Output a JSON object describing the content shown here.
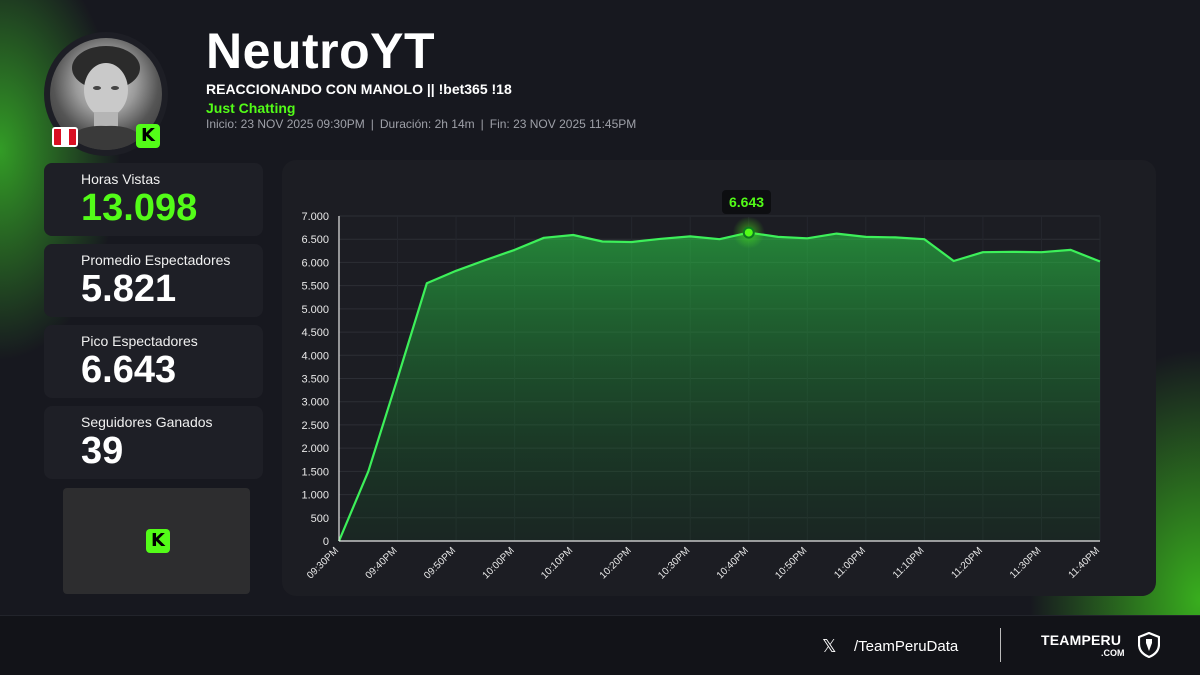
{
  "header": {
    "streamer": "NeutroYT",
    "stream_title": "REACCIONANDO CON MANOLO || !bet365 !18",
    "category": "Just Chatting",
    "start": "Inicio: 23 NOV 2025 09:30PM",
    "duration": "Duración: 2h 14m",
    "end": "Fin: 23 NOV 2025 11:45PM",
    "separator": "|"
  },
  "stats": [
    {
      "label": "Horas Vistas",
      "value": "13.098",
      "accent": "#53fc18"
    },
    {
      "label": "Promedio Espectadores",
      "value": "5.821"
    },
    {
      "label": "Pico Espectadores",
      "value": "6.643"
    },
    {
      "label": "Seguidores Ganados",
      "value": "39"
    }
  ],
  "badges": {
    "platform_icon": "kick-icon",
    "platform_letter": "K",
    "country_flag": "peru-flag-icon"
  },
  "tooltip": {
    "label": "6.643"
  },
  "footer": {
    "social_icon": "x-icon",
    "social_glyph": "𝕏",
    "handle": "/TeamPeruData",
    "brand": "TEAMPERU",
    "brand_sub": ".COM"
  },
  "colors": {
    "accent": "#53fc18",
    "background": "#17181f",
    "card": "#1e1f26"
  },
  "chart_data": {
    "type": "area",
    "title": "",
    "xlabel": "",
    "ylabel": "",
    "ylim": [
      0,
      7000
    ],
    "yticks": [
      0,
      500,
      1000,
      1500,
      2000,
      2500,
      3000,
      3500,
      4000,
      4500,
      5000,
      5500,
      6000,
      6500,
      7000
    ],
    "ytick_labels": [
      "0",
      "500",
      "1.000",
      "1.500",
      "2.000",
      "2.500",
      "3.000",
      "3.500",
      "4.000",
      "4.500",
      "5.000",
      "5.500",
      "6.000",
      "6.500",
      "7.000"
    ],
    "xtick_labels": [
      "09:30PM",
      "09:40PM",
      "09:50PM",
      "10:00PM",
      "10:10PM",
      "10:20PM",
      "10:30PM",
      "10:40PM",
      "10:50PM",
      "11:00PM",
      "11:10PM",
      "11:20PM",
      "11:30PM",
      "11:40PM"
    ],
    "x_minutes": [
      0,
      5,
      10,
      15,
      20,
      25,
      30,
      35,
      40,
      45,
      50,
      55,
      60,
      65,
      70,
      75,
      80,
      85,
      90,
      95,
      100,
      105,
      110,
      115,
      120,
      125,
      130
    ],
    "values": [
      0,
      1500,
      3500,
      5550,
      5820,
      6050,
      6270,
      6530,
      6590,
      6450,
      6440,
      6510,
      6560,
      6500,
      6643,
      6550,
      6520,
      6620,
      6550,
      6540,
      6500,
      6030,
      6220,
      6230,
      6220,
      6270,
      6020
    ],
    "peak": {
      "minute": 70,
      "value": 6643
    },
    "grid": true,
    "legend": "none"
  }
}
